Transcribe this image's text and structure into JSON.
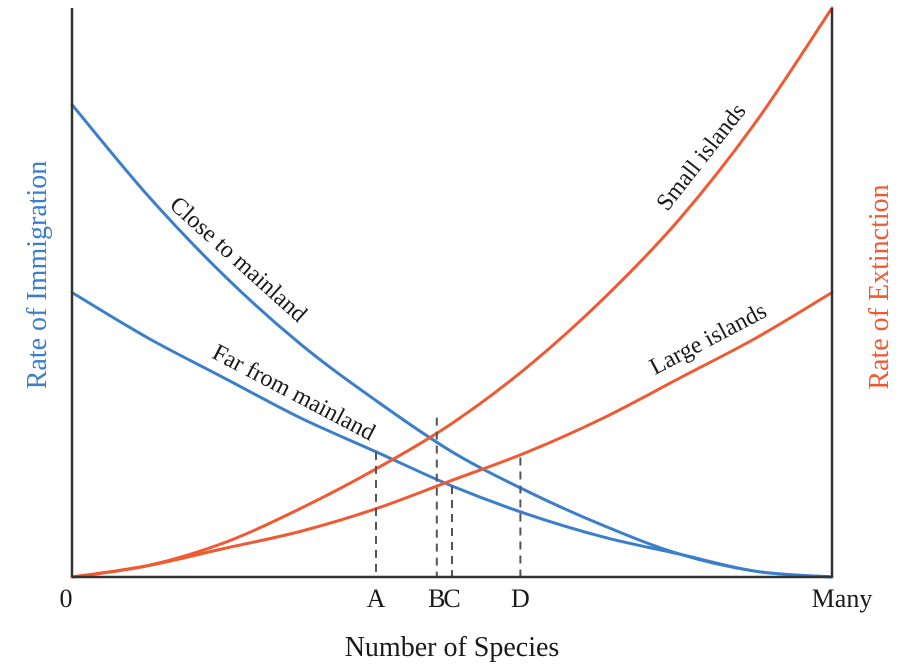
{
  "colors": {
    "immigration": "#3b7fcb",
    "extinction": "#ef5a33",
    "axis": "#333333",
    "guide": "#555555"
  },
  "chart_data": {
    "type": "line",
    "xlabel": "Number of Species",
    "ylabel_left": "Rate of Immigration",
    "ylabel_right": "Rate of Extinction",
    "xlim": [
      0,
      1
    ],
    "ylim": [
      0,
      1
    ],
    "x_tick_labels": [
      {
        "x": 0,
        "label": "0"
      },
      {
        "x": 1,
        "label": "Many"
      }
    ],
    "series": [
      {
        "name": "Close to mainland",
        "group": "immigration",
        "x": [
          0,
          0.1,
          0.2,
          0.3,
          0.4,
          0.5,
          0.6,
          0.7,
          0.8,
          0.9,
          1.0
        ],
        "values": [
          0.83,
          0.67,
          0.53,
          0.41,
          0.31,
          0.22,
          0.15,
          0.09,
          0.04,
          0.01,
          0.0
        ]
      },
      {
        "name": "Far from mainland",
        "group": "immigration",
        "x": [
          0,
          0.1,
          0.2,
          0.3,
          0.4,
          0.5,
          0.6,
          0.7,
          0.8,
          0.9,
          1.0
        ],
        "values": [
          0.5,
          0.42,
          0.35,
          0.28,
          0.22,
          0.16,
          0.11,
          0.07,
          0.04,
          0.01,
          0.0
        ]
      },
      {
        "name": "Small islands",
        "group": "extinction",
        "x": [
          0,
          0.1,
          0.2,
          0.3,
          0.4,
          0.5,
          0.6,
          0.7,
          0.8,
          0.9,
          1.0
        ],
        "values": [
          0.0,
          0.02,
          0.06,
          0.12,
          0.19,
          0.27,
          0.37,
          0.49,
          0.63,
          0.8,
          1.0
        ]
      },
      {
        "name": "Large islands",
        "group": "extinction",
        "x": [
          0,
          0.1,
          0.2,
          0.3,
          0.4,
          0.5,
          0.6,
          0.7,
          0.8,
          0.9,
          1.0
        ],
        "values": [
          0.0,
          0.02,
          0.05,
          0.08,
          0.12,
          0.17,
          0.22,
          0.28,
          0.35,
          0.42,
          0.5
        ]
      }
    ],
    "equilibria": [
      {
        "label": "A",
        "x": 0.4,
        "y": 0.22
      },
      {
        "label": "B",
        "x": 0.48,
        "y": 0.28
      },
      {
        "label": "C",
        "x": 0.5,
        "y": 0.16
      },
      {
        "label": "D",
        "x": 0.59,
        "y": 0.21
      }
    ]
  }
}
